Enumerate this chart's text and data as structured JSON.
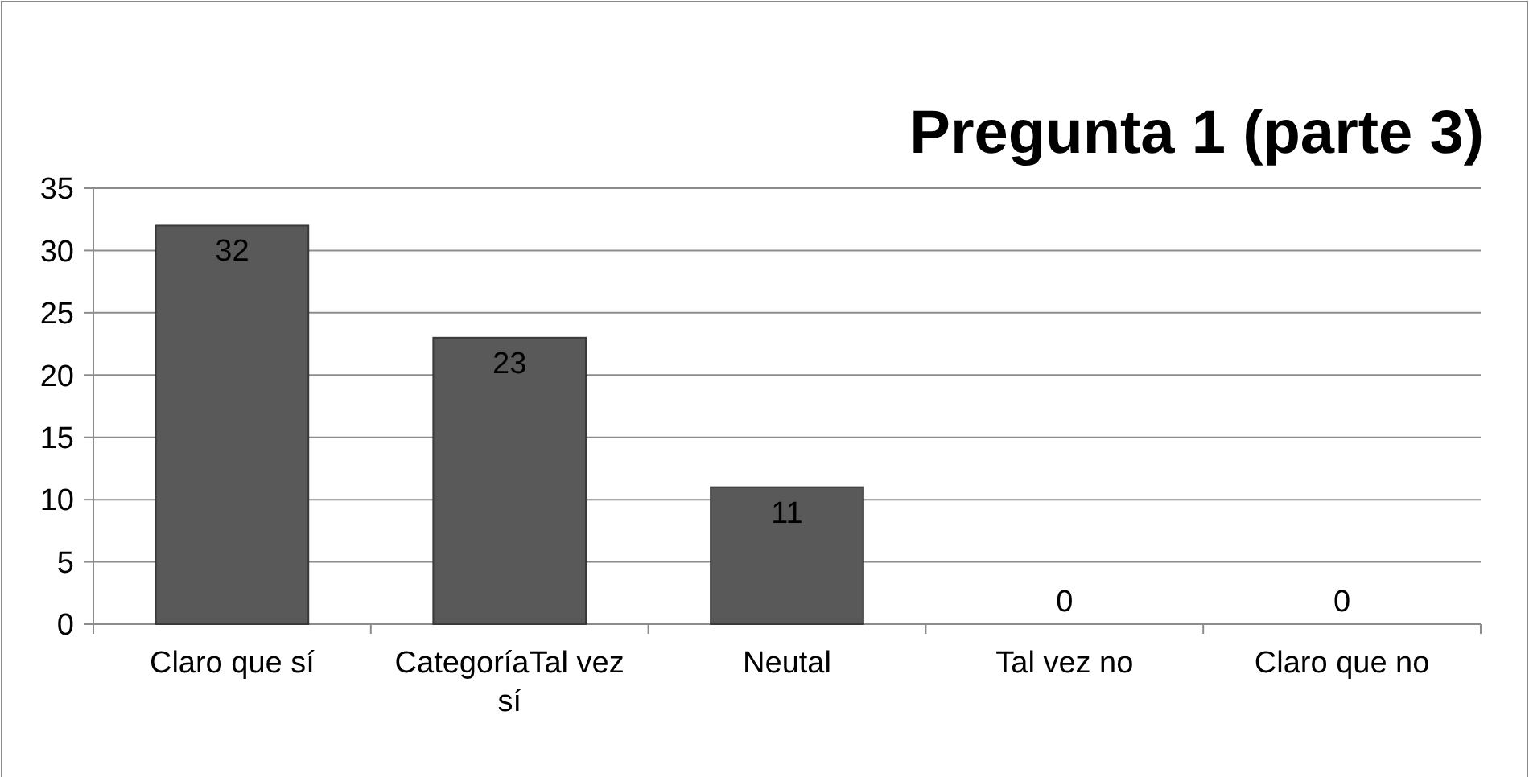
{
  "chart_data": {
    "type": "bar",
    "title": "Pregunta 1 (parte 3)",
    "categories": [
      "Claro que sí",
      "CategoríaTal vez sí",
      "Neutal",
      "Tal vez no",
      "Claro que no"
    ],
    "values": [
      32,
      23,
      11,
      0,
      0
    ],
    "color": "#595959",
    "ylim": [
      0,
      35
    ],
    "yticks": [
      0,
      5,
      10,
      15,
      20,
      25,
      30,
      35
    ],
    "grid": "y",
    "data_labels": true
  }
}
